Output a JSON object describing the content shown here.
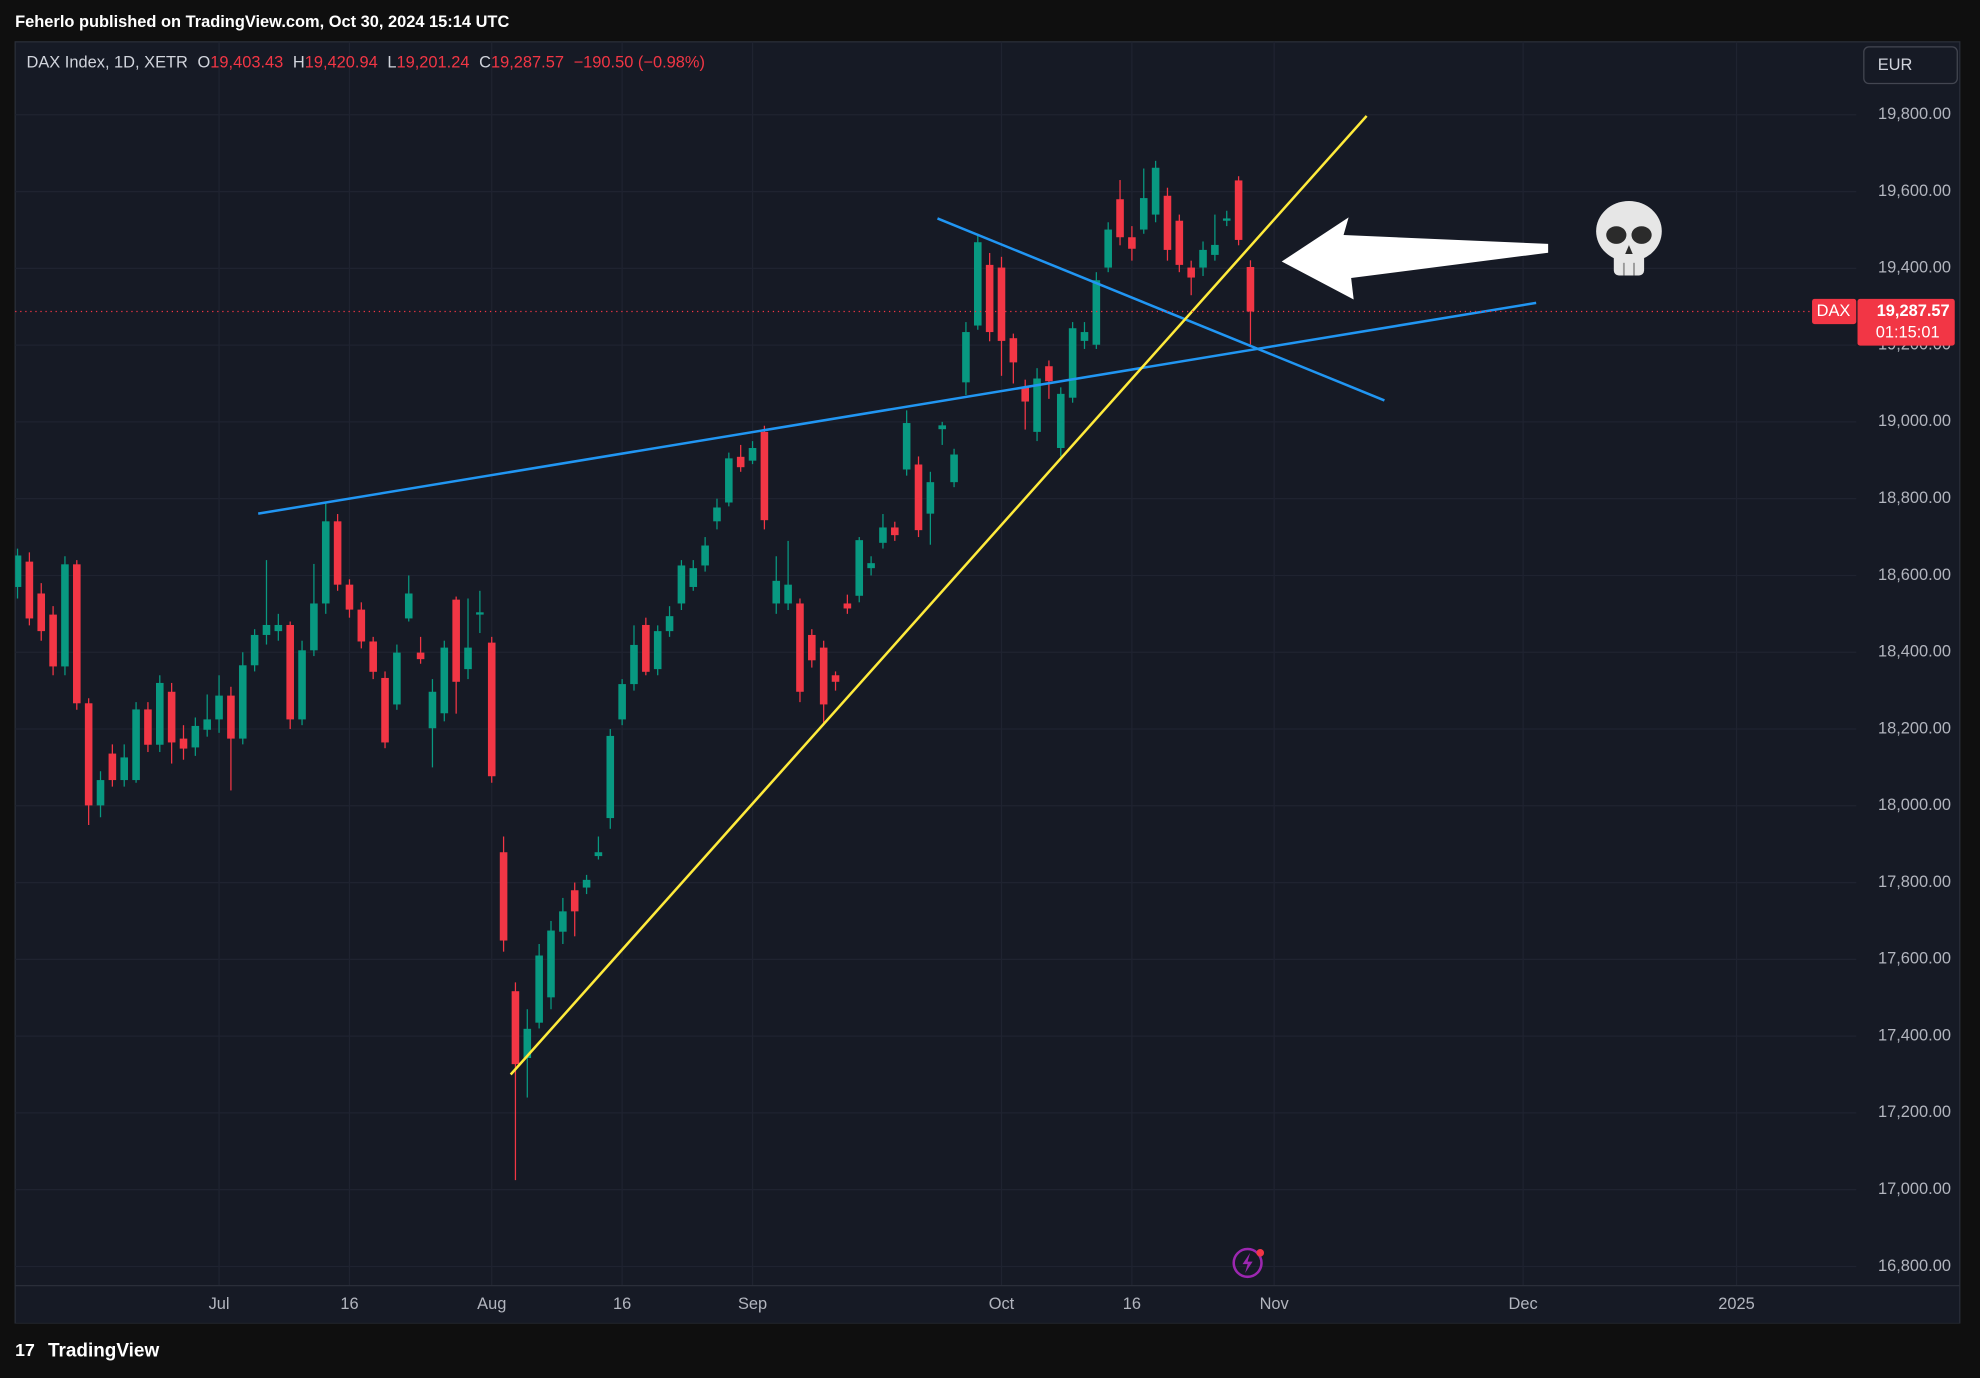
{
  "top_bar": {
    "text": "Feherlo published on TradingView.com, Oct 30, 2024 15:14 UTC"
  },
  "header": {
    "symbol": "DAX Index, 1D, XETR",
    "fields": [
      {
        "label": "O",
        "value": "19,403.43"
      },
      {
        "label": "H",
        "value": "19,420.94"
      },
      {
        "label": "L",
        "value": "19,201.24"
      },
      {
        "label": "C",
        "value": "19,287.57"
      }
    ],
    "change": "−190.50 (−0.98%)"
  },
  "currency": "EUR",
  "price_label": {
    "symbol": "DAX",
    "value": "19,287.57",
    "countdown": "01:15:01"
  },
  "footer": {
    "brand": "TradingView"
  },
  "chart_data": {
    "type": "candlestick",
    "up_color": "#089981",
    "down_color": "#f23645",
    "series": {
      "open": [
        18570,
        18636,
        18553,
        18498,
        18363,
        18629,
        18267,
        18001,
        18136,
        18067,
        18067,
        18251,
        18159,
        18297,
        18175,
        18152,
        18198,
        18225,
        18287,
        18175,
        18366,
        18445,
        18455,
        18471,
        18225,
        18405,
        18527,
        18741,
        18576,
        18511,
        18428,
        18333,
        18264,
        18488,
        18399,
        18202,
        18241,
        18537,
        18356,
        18498,
        18425,
        17879,
        17517,
        17343,
        17435,
        17501,
        17672,
        17780,
        17787,
        17869,
        17968,
        18225,
        18317,
        18471,
        18356,
        18455,
        18527,
        18570,
        18626,
        18741,
        18790,
        18909,
        18899,
        18974,
        18527,
        18527,
        18527,
        18445,
        18412,
        18340,
        18527,
        18547,
        18619,
        18685,
        18725,
        18876,
        18889,
        18761,
        18981,
        18843,
        19103,
        19251,
        19409,
        19402,
        19218,
        19090,
        18974,
        19145,
        18932,
        19063,
        19211,
        19201,
        19402,
        19580,
        19481,
        19501,
        19540,
        19589,
        19524,
        19402,
        19402,
        19435,
        19524,
        19629,
        19403.43
      ],
      "high": [
        18670,
        18660,
        18580,
        18520,
        18650,
        18640,
        18280,
        18090,
        18160,
        18160,
        18270,
        18270,
        18340,
        18320,
        18210,
        18230,
        18290,
        18340,
        18310,
        18400,
        18460,
        18640,
        18500,
        18480,
        18430,
        18630,
        18790,
        18760,
        18590,
        18530,
        18440,
        18350,
        18420,
        18600,
        18440,
        18330,
        18430,
        18545,
        18540,
        18560,
        18440,
        17920,
        17540,
        17470,
        17640,
        17700,
        17760,
        17800,
        17820,
        17920,
        18200,
        18330,
        18470,
        18490,
        18470,
        18520,
        18640,
        18640,
        18700,
        18800,
        18920,
        18940,
        18950,
        18990,
        18650,
        18690,
        18540,
        18460,
        18430,
        18350,
        18550,
        18700,
        18650,
        18760,
        18740,
        19030,
        18910,
        18870,
        19000,
        18930,
        19260,
        19490,
        19440,
        19430,
        19230,
        19110,
        19140,
        19160,
        19090,
        19260,
        19260,
        19390,
        19520,
        19630,
        19510,
        19660,
        19680,
        19610,
        19540,
        19420,
        19470,
        19540,
        19550,
        19640,
        19420.94
      ],
      "low": [
        18540,
        18470,
        18430,
        18340,
        18340,
        18250,
        17950,
        17970,
        18050,
        18050,
        18060,
        18140,
        18140,
        18110,
        18120,
        18130,
        18180,
        18190,
        18040,
        18160,
        18350,
        18420,
        18430,
        18200,
        18210,
        18390,
        18500,
        18560,
        18490,
        18410,
        18330,
        18150,
        18250,
        18480,
        18370,
        18100,
        18220,
        18240,
        18330,
        18450,
        18060,
        17620,
        17025,
        17240,
        17420,
        17470,
        17640,
        17660,
        17770,
        17860,
        17940,
        18210,
        18300,
        18340,
        18340,
        18440,
        18510,
        18560,
        18610,
        18720,
        18780,
        18870,
        18890,
        18720,
        18500,
        18510,
        18270,
        18360,
        18210,
        18300,
        18500,
        18530,
        18600,
        18670,
        18690,
        18860,
        18700,
        18680,
        18940,
        18830,
        19070,
        19240,
        19210,
        19120,
        19100,
        18980,
        18950,
        19060,
        18910,
        19050,
        19190,
        19190,
        19390,
        19460,
        19420,
        19490,
        19520,
        19420,
        19390,
        19330,
        19380,
        19420,
        19510,
        19460,
        19201.24
      ],
      "close": [
        18652,
        18488,
        18455,
        18363,
        18629,
        18267,
        18001,
        18067,
        18067,
        18126,
        18251,
        18159,
        18320,
        18165,
        18149,
        18208,
        18225,
        18287,
        18175,
        18366,
        18445,
        18471,
        18471,
        18225,
        18405,
        18527,
        18741,
        18576,
        18511,
        18428,
        18349,
        18165,
        18399,
        18553,
        18382,
        18297,
        18412,
        18323,
        18412,
        18504,
        18077,
        17649,
        17327,
        17419,
        17610,
        17675,
        17725,
        17725,
        17807,
        17879,
        18182,
        18317,
        18419,
        18349,
        18455,
        18494,
        18626,
        18619,
        18678,
        18777,
        18905,
        18882,
        18932,
        18744,
        18586,
        18576,
        18297,
        18379,
        18264,
        18323,
        18514,
        18692,
        18632,
        18725,
        18705,
        18997,
        18718,
        18843,
        18991,
        18915,
        19234,
        19468,
        19234,
        19211,
        19155,
        19053,
        19113,
        19106,
        19073,
        19244,
        19234,
        19369,
        19501,
        19481,
        19451,
        19583,
        19662,
        19448,
        19409,
        19376,
        19448,
        19461,
        19530,
        19474,
        19287.57
      ]
    },
    "xlim": [
      -0.2,
      155.1
    ],
    "xticks": [
      {
        "value": 17,
        "label": "Jul"
      },
      {
        "value": 28,
        "label": "16"
      },
      {
        "value": 40,
        "label": "Aug"
      },
      {
        "value": 51,
        "label": "16"
      },
      {
        "value": 62,
        "label": "Sep"
      },
      {
        "value": 83,
        "label": "Oct"
      },
      {
        "value": 94,
        "label": "16"
      },
      {
        "value": 106,
        "label": "Nov"
      },
      {
        "value": 127,
        "label": "Dec"
      },
      {
        "value": 145,
        "label": "2025"
      }
    ],
    "ylim": [
      16750,
      19990
    ],
    "yticks": [
      {
        "value": 16800,
        "label": "16,800.00"
      },
      {
        "value": 17000,
        "label": "17,000.00"
      },
      {
        "value": 17200,
        "label": "17,200.00"
      },
      {
        "value": 17400,
        "label": "17,400.00"
      },
      {
        "value": 17600,
        "label": "17,600.00"
      },
      {
        "value": 17800,
        "label": "17,800.00"
      },
      {
        "value": 18000,
        "label": "18,000.00"
      },
      {
        "value": 18200,
        "label": "18,200.00"
      },
      {
        "value": 18400,
        "label": "18,400.00"
      },
      {
        "value": 18600,
        "label": "18,600.00"
      },
      {
        "value": 18800,
        "label": "18,800.00"
      },
      {
        "value": 19000,
        "label": "19,000.00"
      },
      {
        "value": 19200,
        "label": "19,200.00"
      },
      {
        "value": 19400,
        "label": "19,400.00"
      },
      {
        "value": 19600,
        "label": "19,600.00"
      },
      {
        "value": 19800,
        "label": "19,800.00"
      }
    ],
    "grid": true,
    "trend_lines": [
      {
        "color": "#2196f3",
        "x": [
          20.3,
          128.1
        ],
        "y": [
          18761,
          19310
        ]
      },
      {
        "color": "#2196f3",
        "x": [
          77.6,
          115.3
        ],
        "y": [
          19530,
          19056
        ]
      },
      {
        "color": "#ffeb3b",
        "x": [
          41.6,
          113.8
        ],
        "y": [
          17300,
          19797
        ]
      }
    ]
  }
}
